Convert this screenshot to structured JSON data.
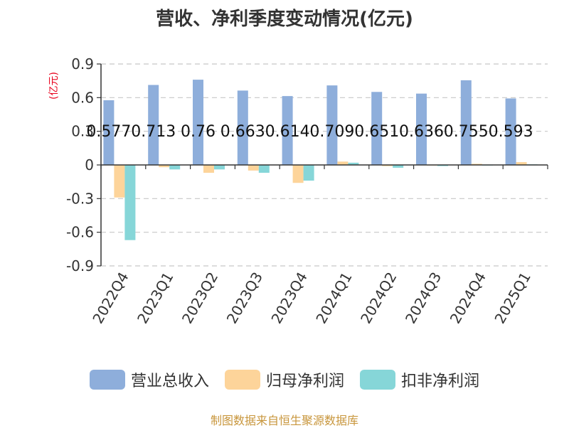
{
  "chart_data": {
    "type": "bar",
    "title": "营收、净利季度变动情况(亿元)",
    "unit_label": "(亿元)",
    "categories": [
      "2022Q4",
      "2023Q1",
      "2023Q2",
      "2023Q3",
      "2023Q4",
      "2024Q1",
      "2024Q2",
      "2024Q3",
      "2024Q4",
      "2025Q1"
    ],
    "series": [
      {
        "name": "营业总收入",
        "color": "#8eaedb",
        "values": [
          0.577,
          0.713,
          0.76,
          0.663,
          0.614,
          0.709,
          0.651,
          0.636,
          0.755,
          0.593
        ],
        "labels": [
          "0.577",
          "0.713",
          "0.76",
          "0.663",
          "0.614",
          "0.709",
          "0.651",
          "0.636",
          "0.755",
          "0.593"
        ]
      },
      {
        "name": "归母净利润",
        "color": "#fdd49a",
        "values": [
          -0.29,
          -0.02,
          -0.07,
          -0.05,
          -0.16,
          0.03,
          -0.01,
          -0.005,
          0.01,
          0.025
        ]
      },
      {
        "name": "扣非净利润",
        "color": "#86d6d8",
        "values": [
          -0.67,
          -0.04,
          -0.04,
          -0.07,
          -0.14,
          0.02,
          -0.025,
          -0.01,
          -0.005,
          0.005
        ]
      }
    ],
    "yticks": [
      "0.9",
      "0.6",
      "0.3",
      "0",
      "-0.3",
      "-0.6",
      "-0.9"
    ],
    "ylim": [
      -0.9,
      0.9
    ],
    "grid": true,
    "legend_position": "bottom"
  },
  "source": "制图数据来自恒生聚源数据库"
}
